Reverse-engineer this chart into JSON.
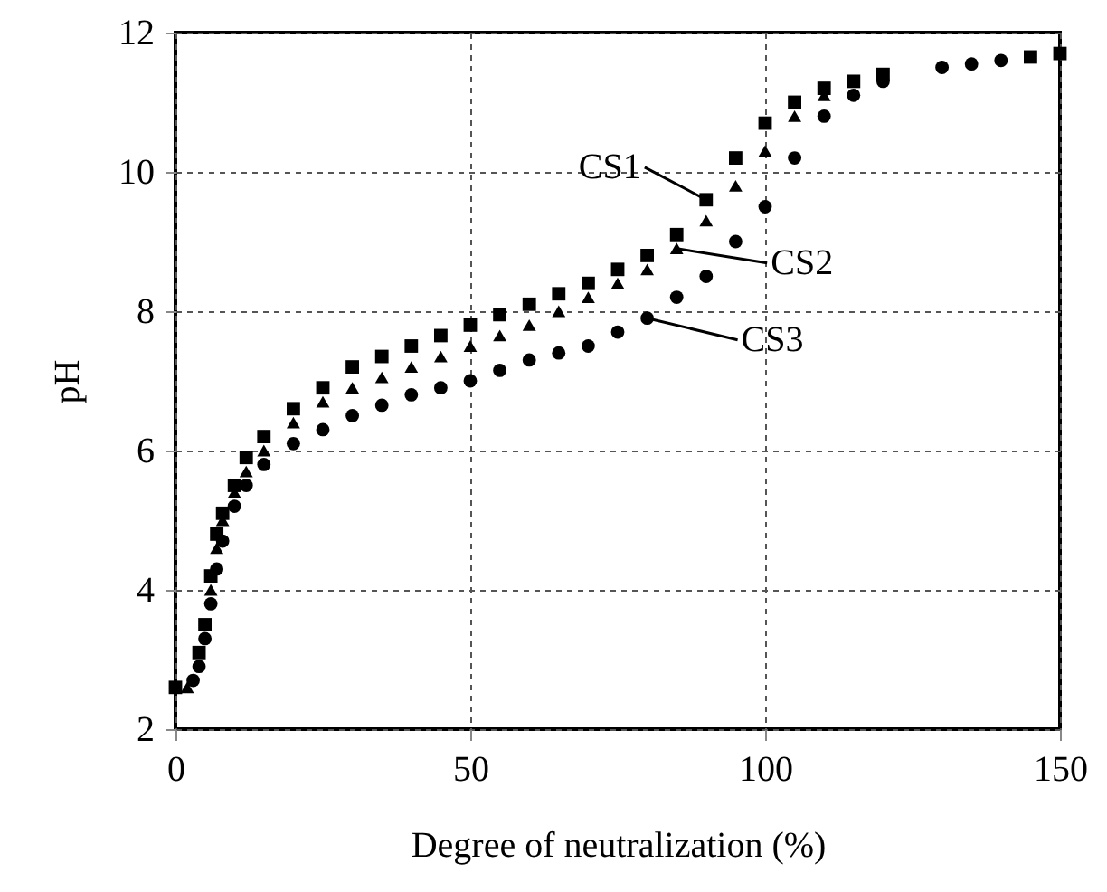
{
  "chart_data": {
    "type": "scatter",
    "xlabel": "Degree of neutralization (%)",
    "ylabel": "pH",
    "xlim": [
      0,
      150
    ],
    "ylim": [
      2,
      12
    ],
    "xticks": [
      0,
      50,
      100,
      150
    ],
    "yticks": [
      2,
      4,
      6,
      8,
      10,
      12
    ],
    "grid": true,
    "series": [
      {
        "color": "#000000",
        "marker": "square",
        "x": [
          0,
          4,
          5,
          6,
          7,
          8,
          10,
          12,
          15,
          20,
          25,
          30,
          35,
          40,
          45,
          50,
          55,
          60,
          65,
          70,
          75,
          80,
          85,
          90,
          95,
          100,
          105,
          110,
          115,
          120,
          145,
          150
        ],
        "values": [
          2.6,
          3.1,
          3.5,
          4.2,
          4.8,
          5.1,
          5.5,
          5.9,
          6.2,
          6.6,
          6.9,
          7.2,
          7.35,
          7.5,
          7.65,
          7.8,
          7.95,
          8.1,
          8.25,
          8.4,
          8.6,
          8.8,
          9.1,
          9.6,
          10.2,
          10.7,
          11.0,
          11.2,
          11.3,
          11.4,
          11.65,
          11.7
        ]
      },
      {
        "color": "#000000",
        "marker": "triangle",
        "x": [
          2,
          6,
          7,
          8,
          10,
          12,
          15,
          20,
          25,
          30,
          35,
          40,
          45,
          50,
          55,
          60,
          65,
          70,
          75,
          80,
          85,
          90,
          95,
          100,
          105,
          110
        ],
        "values": [
          2.6,
          4.0,
          4.6,
          5.0,
          5.4,
          5.7,
          6.0,
          6.4,
          6.7,
          6.9,
          7.05,
          7.2,
          7.35,
          7.5,
          7.65,
          7.8,
          8.0,
          8.2,
          8.4,
          8.6,
          8.9,
          9.3,
          9.8,
          10.3,
          10.8,
          11.1
        ]
      },
      {
        "color": "#000000",
        "marker": "circle",
        "x": [
          3,
          4,
          5,
          6,
          7,
          8,
          10,
          12,
          15,
          20,
          25,
          30,
          35,
          40,
          45,
          50,
          55,
          60,
          65,
          70,
          75,
          80,
          85,
          90,
          95,
          100,
          105,
          110,
          115,
          120,
          130,
          135,
          140
        ],
        "values": [
          2.7,
          2.9,
          3.3,
          3.8,
          4.3,
          4.7,
          5.2,
          5.5,
          5.8,
          6.1,
          6.3,
          6.5,
          6.65,
          6.8,
          6.9,
          7.0,
          7.15,
          7.3,
          7.4,
          7.5,
          7.7,
          7.9,
          8.2,
          8.5,
          9.0,
          9.5,
          10.2,
          10.8,
          11.1,
          11.3,
          11.5,
          11.55,
          11.6
        ]
      }
    ],
    "annotations": [
      {
        "text": "CS1",
        "x": 90,
        "y": 9.6
      },
      {
        "text": "CS2",
        "x": 85,
        "y": 8.9
      },
      {
        "text": "CS3",
        "x": 80,
        "y": 7.9
      }
    ]
  }
}
